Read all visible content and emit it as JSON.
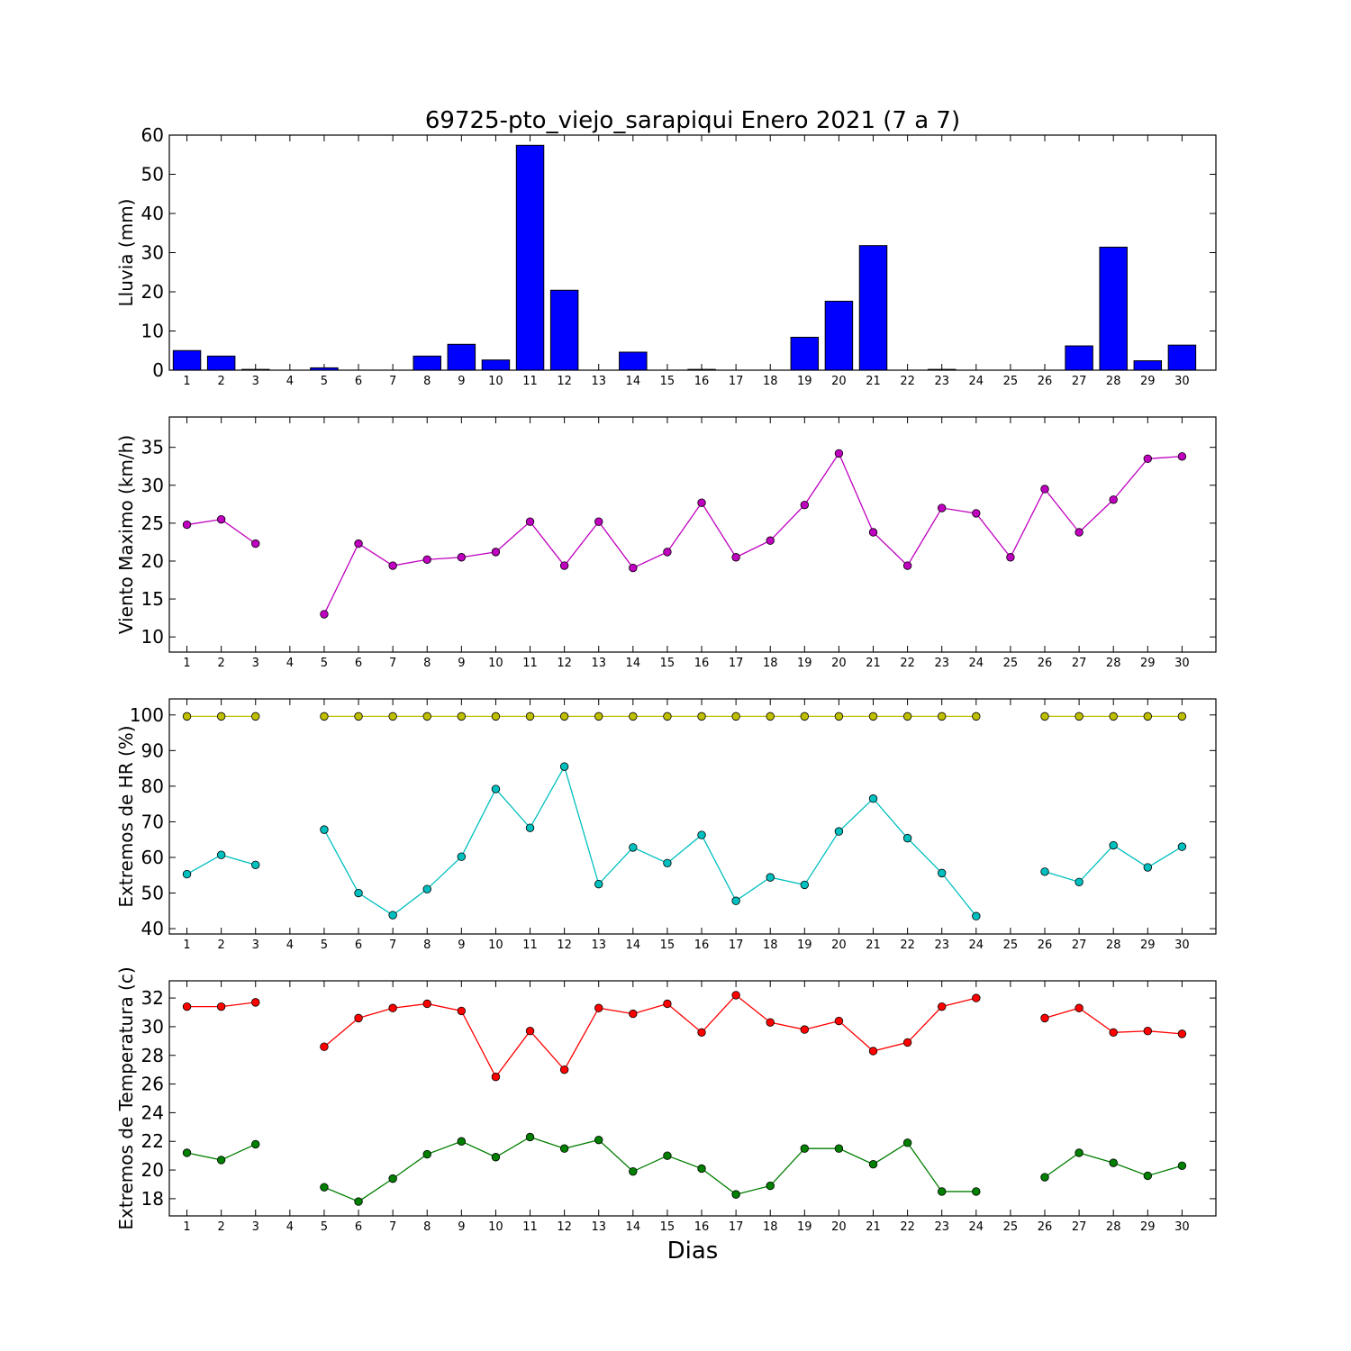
{
  "figure": {
    "title": "69725-pto_viejo_sarapiqui Enero 2021  (7 a 7)",
    "xlabel": "Dias"
  },
  "chart_data": [
    {
      "type": "bar",
      "ylabel": "Lluvia (mm)",
      "ylim": [
        0,
        60
      ],
      "yticks": [
        0,
        10,
        20,
        30,
        40,
        50,
        60
      ],
      "categories": [
        1,
        2,
        3,
        4,
        5,
        6,
        7,
        8,
        9,
        10,
        11,
        12,
        13,
        14,
        15,
        16,
        17,
        18,
        19,
        20,
        21,
        22,
        23,
        24,
        25,
        26,
        27,
        28,
        29,
        30
      ],
      "color": "#0000ff",
      "values": [
        5.0,
        3.6,
        0.2,
        0.0,
        0.6,
        0.0,
        0.0,
        3.6,
        6.6,
        2.6,
        57.4,
        20.4,
        0.0,
        4.6,
        0.0,
        0.2,
        0.0,
        0.0,
        8.4,
        17.6,
        31.8,
        0.0,
        0.2,
        0.0,
        0.0,
        0.0,
        6.2,
        31.4,
        2.4,
        6.4
      ]
    },
    {
      "type": "line",
      "ylabel": "Viento Maximo (km/h)",
      "ylim": [
        8,
        39
      ],
      "yticks": [
        10,
        15,
        20,
        25,
        30,
        35
      ],
      "x": [
        1,
        2,
        3,
        4,
        5,
        6,
        7,
        8,
        9,
        10,
        11,
        12,
        13,
        14,
        15,
        16,
        17,
        18,
        19,
        20,
        21,
        22,
        23,
        24,
        25,
        26,
        27,
        28,
        29,
        30
      ],
      "series": [
        {
          "color": "#bf00bf",
          "values": [
            24.8,
            25.5,
            22.3,
            null,
            13.0,
            22.3,
            19.4,
            20.2,
            20.5,
            21.2,
            25.2,
            19.4,
            25.2,
            19.1,
            21.2,
            27.7,
            20.5,
            22.7,
            27.4,
            34.2,
            23.8,
            19.4,
            27.0,
            26.3,
            20.5,
            29.5,
            23.8,
            28.1,
            33.5,
            33.8
          ]
        }
      ]
    },
    {
      "type": "line",
      "ylabel": "Extremos de HR (%)",
      "ylim": [
        38.5,
        104.5
      ],
      "yticks": [
        40,
        50,
        60,
        70,
        80,
        90,
        100
      ],
      "x": [
        1,
        2,
        3,
        4,
        5,
        6,
        7,
        8,
        9,
        10,
        11,
        12,
        13,
        14,
        15,
        16,
        17,
        18,
        19,
        20,
        21,
        22,
        23,
        24,
        25,
        26,
        27,
        28,
        29,
        30
      ],
      "series": [
        {
          "color": "#bfbf00",
          "values": [
            99.6,
            99.6,
            99.6,
            null,
            99.6,
            99.6,
            99.6,
            99.6,
            99.6,
            99.6,
            99.6,
            99.6,
            99.6,
            99.6,
            99.6,
            99.6,
            99.6,
            99.6,
            99.6,
            99.6,
            99.6,
            99.6,
            99.6,
            99.6,
            null,
            99.6,
            99.6,
            99.6,
            99.6,
            99.6
          ]
        },
        {
          "color": "#00bfbf",
          "values": [
            55.3,
            60.7,
            57.9,
            null,
            67.8,
            50.0,
            43.8,
            51.1,
            60.2,
            79.2,
            68.3,
            85.5,
            52.5,
            62.8,
            58.4,
            66.3,
            47.8,
            54.4,
            52.3,
            67.3,
            76.5,
            65.4,
            55.6,
            43.5,
            null,
            56.0,
            53.1,
            63.4,
            57.2,
            63.0
          ]
        }
      ]
    },
    {
      "type": "line",
      "ylabel": "Extremos de Temperatura (c)",
      "ylim": [
        16.8,
        33.2
      ],
      "yticks": [
        18,
        20,
        22,
        24,
        26,
        28,
        30,
        32
      ],
      "x": [
        1,
        2,
        3,
        4,
        5,
        6,
        7,
        8,
        9,
        10,
        11,
        12,
        13,
        14,
        15,
        16,
        17,
        18,
        19,
        20,
        21,
        22,
        23,
        24,
        25,
        26,
        27,
        28,
        29,
        30
      ],
      "series": [
        {
          "color": "#ff0000",
          "values": [
            31.4,
            31.4,
            31.7,
            null,
            28.6,
            30.6,
            31.3,
            31.6,
            31.1,
            26.5,
            29.7,
            27.0,
            31.3,
            30.9,
            31.6,
            29.6,
            32.2,
            30.3,
            29.8,
            30.4,
            28.3,
            28.9,
            31.4,
            32.0,
            null,
            30.6,
            31.3,
            29.6,
            29.7,
            29.5
          ]
        },
        {
          "color": "#007f00",
          "values": [
            21.2,
            20.7,
            21.8,
            null,
            18.8,
            17.8,
            19.4,
            21.1,
            22.0,
            20.9,
            22.3,
            21.5,
            22.1,
            19.9,
            21.0,
            20.1,
            18.3,
            18.9,
            21.5,
            21.5,
            20.4,
            21.9,
            18.5,
            18.5,
            null,
            19.5,
            21.2,
            20.5,
            19.6,
            20.3
          ]
        }
      ]
    }
  ]
}
